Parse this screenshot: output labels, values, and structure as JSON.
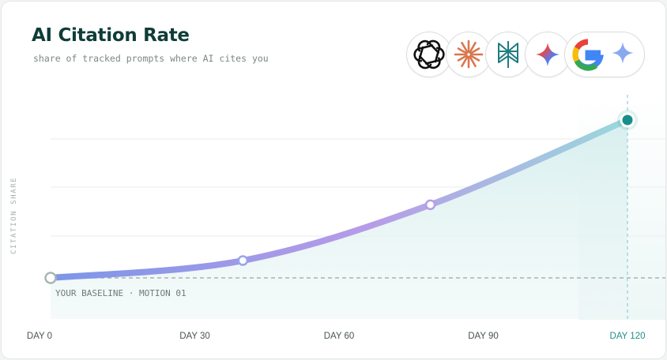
{
  "header": {
    "title": "AI Citation Rate",
    "subtitle": "share of tracked prompts where AI cites you"
  },
  "logos": [
    {
      "name": "openai-icon"
    },
    {
      "name": "claude-icon"
    },
    {
      "name": "perplexity-icon"
    },
    {
      "name": "gemini-icon"
    },
    {
      "name": "google-icon"
    }
  ],
  "chart_data": {
    "type": "line",
    "title": "AI Citation Rate",
    "subtitle": "share of tracked prompts where AI cites you",
    "ylabel": "CITATION SHARE",
    "xlabel": "",
    "x_tick_labels": [
      "DAY 0",
      "DAY 30",
      "DAY 60",
      "DAY 90",
      "DAY 120"
    ],
    "x_ticks": [
      0,
      30,
      60,
      90,
      120
    ],
    "xlim": [
      0,
      120
    ],
    "ylim": [
      0,
      1
    ],
    "series": [
      {
        "points": [
          {
            "x": 0,
            "y": 0.0
          },
          {
            "x": 40,
            "y": 0.09
          },
          {
            "x": 79,
            "y": 0.38
          },
          {
            "x": 120,
            "y": 0.82
          }
        ]
      }
    ],
    "baseline": {
      "y": 0.0,
      "label": "YOUR BASELINE · MOTION 01"
    },
    "highlight_x": 120,
    "grid": true,
    "colors": {
      "line_start": "#7b96e8",
      "line_mid": "#b79be8",
      "line_end": "#9ad8dc",
      "accent": "#168f8b",
      "area": "#dff1f1"
    }
  }
}
